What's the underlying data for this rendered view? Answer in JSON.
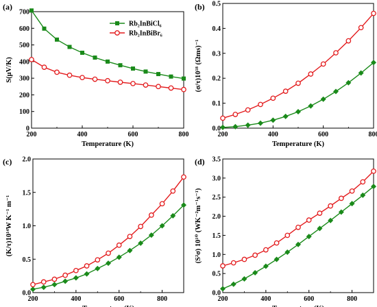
{
  "colors": {
    "green": "#1a8a1a",
    "red": "#e31a1c",
    "axis": "#000000"
  },
  "legend": {
    "entries": [
      {
        "label": "Rb₂InBiCl₆",
        "series": 0
      },
      {
        "label": "Rb₂InBiBr₆",
        "series": 1
      }
    ]
  },
  "chart_data": [
    {
      "panel": "(a)",
      "type": "line",
      "xlabel": "Temperature (K)",
      "ylabel": "S(μV/K)",
      "xlim": [
        200,
        800
      ],
      "ylim": [
        0,
        700
      ],
      "xticks": [
        200,
        400,
        600,
        800
      ],
      "yticks": [
        0,
        100,
        200,
        300,
        400,
        500,
        600,
        700
      ],
      "legend_placement": "top-right",
      "series": [
        {
          "name": "Rb₂InBiCl₆",
          "color": "green",
          "marker": "square",
          "x": [
            200,
            250,
            300,
            350,
            400,
            450,
            500,
            550,
            600,
            650,
            700,
            750,
            800
          ],
          "y": [
            707,
            598,
            532,
            488,
            453,
            424,
            400,
            378,
            358,
            340,
            325,
            310,
            298
          ]
        },
        {
          "name": "Rb₂InBiBr₆",
          "color": "red",
          "marker": "circle",
          "x": [
            200,
            250,
            300,
            350,
            400,
            450,
            500,
            550,
            600,
            650,
            700,
            750,
            800
          ],
          "y": [
            412,
            366,
            336,
            318,
            304,
            294,
            285,
            276,
            268,
            259,
            250,
            241,
            232
          ]
        }
      ]
    },
    {
      "panel": "(b)",
      "type": "line",
      "xlabel": "Temperature (K)",
      "ylabel": "(σ/τ)10¹⁸ (Ωms)⁻¹",
      "xlim": [
        200,
        800
      ],
      "ylim": [
        0,
        0.5
      ],
      "xticks": [
        200,
        400,
        600,
        800
      ],
      "yticks": [
        0.0,
        0.1,
        0.2,
        0.3,
        0.4,
        0.5
      ],
      "series": [
        {
          "name": "Rb₂InBiCl₆",
          "color": "green",
          "marker": "diamond",
          "x": [
            200,
            250,
            300,
            350,
            400,
            450,
            500,
            550,
            600,
            650,
            700,
            750,
            800
          ],
          "y": [
            0.003,
            0.006,
            0.012,
            0.02,
            0.032,
            0.047,
            0.066,
            0.089,
            0.116,
            0.147,
            0.182,
            0.221,
            0.263
          ]
        },
        {
          "name": "Rb₂InBiBr₆",
          "color": "red",
          "marker": "circle",
          "x": [
            200,
            250,
            300,
            350,
            400,
            450,
            500,
            550,
            600,
            650,
            700,
            750,
            800
          ],
          "y": [
            0.04,
            0.055,
            0.073,
            0.095,
            0.12,
            0.148,
            0.18,
            0.217,
            0.257,
            0.302,
            0.35,
            0.403,
            0.46
          ]
        }
      ]
    },
    {
      "panel": "(c)",
      "type": "line",
      "xlabel": "Temperature (K)",
      "ylabel": "(K/τ)10¹⁴W K⁻¹ m⁻¹",
      "xlim": [
        200,
        900
      ],
      "ylim": [
        0,
        2.0
      ],
      "xticks": [
        200,
        400,
        600,
        800
      ],
      "yticks": [
        0.0,
        0.5,
        1.0,
        1.5,
        2.0
      ],
      "series": [
        {
          "name": "Rb₂InBiCl₆",
          "color": "green",
          "marker": "diamond",
          "x": [
            200,
            250,
            300,
            350,
            400,
            450,
            500,
            550,
            600,
            650,
            700,
            750,
            800,
            850,
            900
          ],
          "y": [
            0.05,
            0.08,
            0.12,
            0.17,
            0.22,
            0.28,
            0.36,
            0.44,
            0.53,
            0.63,
            0.74,
            0.86,
            1.0,
            1.15,
            1.31
          ]
        },
        {
          "name": "Rb₂InBiBr₆",
          "color": "red",
          "marker": "circle",
          "x": [
            200,
            250,
            300,
            350,
            400,
            450,
            500,
            550,
            600,
            650,
            700,
            750,
            800,
            850,
            900
          ],
          "y": [
            0.12,
            0.16,
            0.2,
            0.26,
            0.33,
            0.4,
            0.49,
            0.59,
            0.71,
            0.84,
            0.99,
            1.16,
            1.33,
            1.52,
            1.73
          ]
        }
      ]
    },
    {
      "panel": "(d)",
      "type": "line",
      "xlabel": "Temperature (K)",
      "ylabel": "(S²σ) 10¹⁰ (WK⁻²m⁻¹s⁻¹)",
      "xlim": [
        200,
        900
      ],
      "ylim": [
        0,
        3.5
      ],
      "xticks": [
        200,
        400,
        600,
        800
      ],
      "yticks": [
        0.0,
        0.5,
        1.0,
        1.5,
        2.0,
        2.5,
        3.0,
        3.5
      ],
      "series": [
        {
          "name": "Rb₂InBiCl₆",
          "color": "green",
          "marker": "diamond",
          "x": [
            200,
            250,
            300,
            350,
            400,
            450,
            500,
            550,
            600,
            650,
            700,
            750,
            800,
            850,
            900
          ],
          "y": [
            0.1,
            0.22,
            0.36,
            0.52,
            0.69,
            0.87,
            1.06,
            1.26,
            1.47,
            1.68,
            1.89,
            2.11,
            2.33,
            2.55,
            2.78
          ]
        },
        {
          "name": "Rb₂InBiBr₆",
          "color": "red",
          "marker": "circle",
          "x": [
            200,
            250,
            300,
            350,
            400,
            450,
            500,
            550,
            600,
            650,
            700,
            750,
            800,
            850,
            900
          ],
          "y": [
            0.7,
            0.78,
            0.87,
            0.98,
            1.12,
            1.3,
            1.5,
            1.71,
            1.9,
            2.08,
            2.27,
            2.47,
            2.66,
            2.9,
            3.18
          ]
        }
      ]
    }
  ]
}
